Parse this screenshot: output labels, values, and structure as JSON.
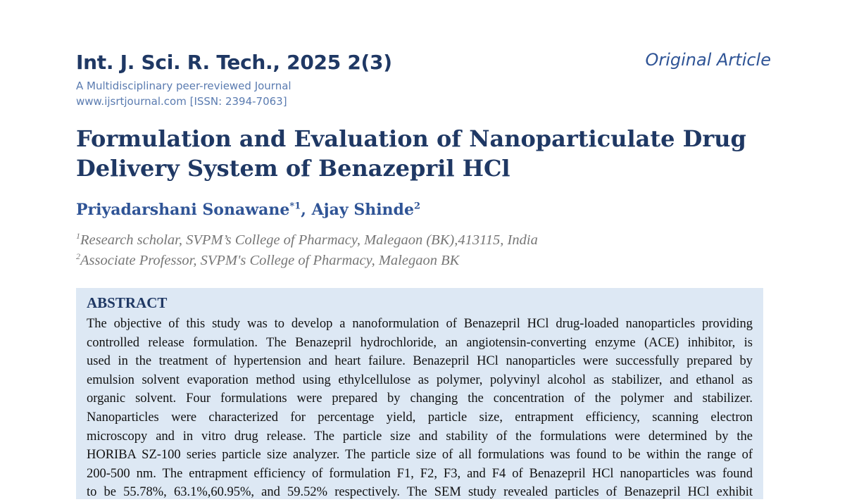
{
  "header": {
    "journal": "Int. J. Sci. R. Tech., 2025 2(3)",
    "tagline": "A Multidisciplinary peer-reviewed Journal",
    "website": "www.ijsrtjournal.com [ISSN: 2394-7063]",
    "article_type": "Original Article"
  },
  "title": [
    "Formulation and Evaluation of Nanoparticulate Drug",
    "Delivery System of Benazepril HCl"
  ],
  "authors": [
    {
      "name": "Priyadarshani Sonawane",
      "mark": "*1"
    },
    {
      "name": "Ajay Shinde",
      "mark": "2"
    }
  ],
  "author_separator": ",",
  "affiliations": [
    {
      "mark": "1",
      "text": "Research scholar, SVPM’s College of Pharmacy, Malegaon (BK),413115, India"
    },
    {
      "mark": "2",
      "text": "Associate Professor, SVPM's College of Pharmacy, Malegaon BK"
    }
  ],
  "abstract": {
    "heading": "ABSTRACT",
    "lines": [
      "The objective of this study was to develop a nanoformulation of Benazepril HCl drug-loaded nanoparticles providing",
      "controlled release formulation. The Benazepril hydrochloride, an angiotensin-converting enzyme (ACE) inhibitor, is",
      "used in the treatment of hypertension and heart failure.  Benazepril HCl nanoparticles were successfully prepared by",
      "emulsion solvent evaporation method using ethylcellulose as polymer, polyvinyl alcohol as stabilizer, and ethanol as",
      "organic solvent. Four formulations were prepared by changing the concentration of the polymer and stabilizer.",
      "Nanoparticles were characterized for percentage yield, particle size, entrapment efficiency, scanning electron",
      "microscopy and in vitro drug release. The particle size and stability of the formulations were determined by the",
      "HORIBA SZ-100 series particle size analyzer. The particle size of all formulations was found to be within the range of",
      "200-500 nm. The entrapment efficiency of formulation F1, F2, F3, and F4 of Benazepril HCl nanoparticles was found",
      "to be 55.78%, 63.1%,60.95%, and 59.52% respectively. The SEM study revealed particles of Benazepril HCl exhibit"
    ]
  }
}
